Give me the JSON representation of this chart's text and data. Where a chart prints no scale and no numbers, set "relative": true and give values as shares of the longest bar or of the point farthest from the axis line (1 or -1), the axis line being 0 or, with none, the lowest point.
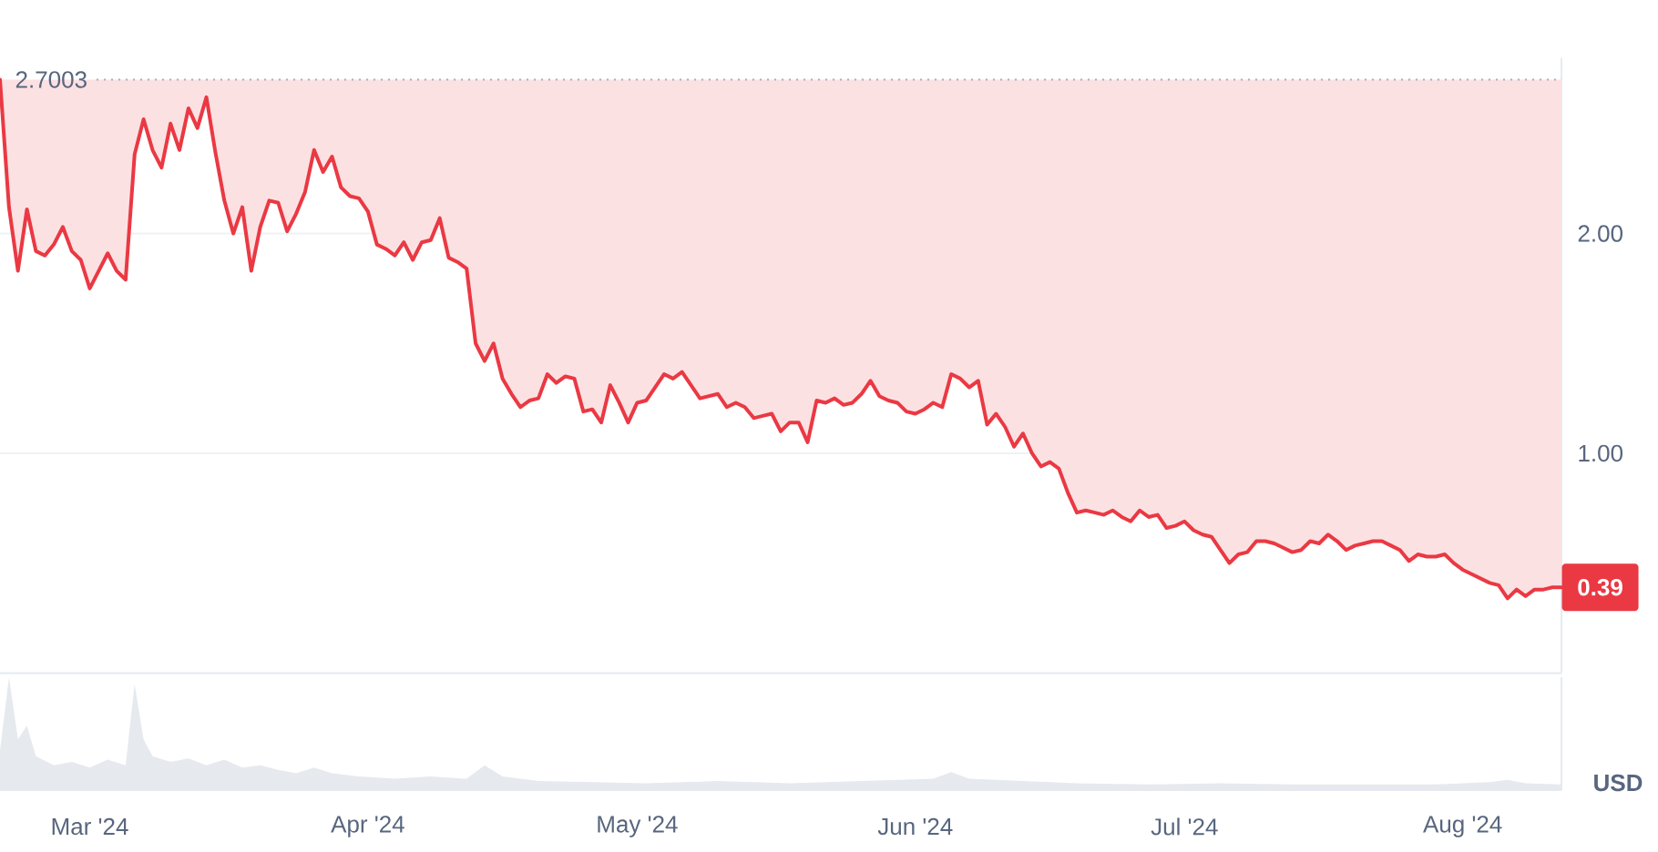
{
  "chart_data": [
    {
      "type": "line",
      "x": [
        "2024-02-20",
        "2024-02-21",
        "2024-02-22",
        "2024-02-23",
        "2024-02-24",
        "2024-02-25",
        "2024-02-26",
        "2024-02-27",
        "2024-02-28",
        "2024-02-29",
        "2024-03-01",
        "2024-03-02",
        "2024-03-03",
        "2024-03-04",
        "2024-03-05",
        "2024-03-06",
        "2024-03-07",
        "2024-03-08",
        "2024-03-09",
        "2024-03-10",
        "2024-03-11",
        "2024-03-12",
        "2024-03-13",
        "2024-03-14",
        "2024-03-15",
        "2024-03-16",
        "2024-03-17",
        "2024-03-18",
        "2024-03-19",
        "2024-03-20",
        "2024-03-21",
        "2024-03-22",
        "2024-03-23",
        "2024-03-24",
        "2024-03-25",
        "2024-03-26",
        "2024-03-27",
        "2024-03-28",
        "2024-03-29",
        "2024-03-30",
        "2024-03-31",
        "2024-04-01",
        "2024-04-02",
        "2024-04-03",
        "2024-04-04",
        "2024-04-05",
        "2024-04-06",
        "2024-04-07",
        "2024-04-08",
        "2024-04-09",
        "2024-04-10",
        "2024-04-11",
        "2024-04-12",
        "2024-04-13",
        "2024-04-14",
        "2024-04-15",
        "2024-04-16",
        "2024-04-17",
        "2024-04-18",
        "2024-04-19",
        "2024-04-20",
        "2024-04-21",
        "2024-04-22",
        "2024-04-23",
        "2024-04-24",
        "2024-04-25",
        "2024-04-26",
        "2024-04-27",
        "2024-04-28",
        "2024-04-29",
        "2024-04-30",
        "2024-05-01",
        "2024-05-02",
        "2024-05-03",
        "2024-05-04",
        "2024-05-05",
        "2024-05-06",
        "2024-05-07",
        "2024-05-08",
        "2024-05-09",
        "2024-05-10",
        "2024-05-11",
        "2024-05-12",
        "2024-05-13",
        "2024-05-14",
        "2024-05-15",
        "2024-05-16",
        "2024-05-17",
        "2024-05-18",
        "2024-05-19",
        "2024-05-20",
        "2024-05-21",
        "2024-05-22",
        "2024-05-23",
        "2024-05-24",
        "2024-05-25",
        "2024-05-26",
        "2024-05-27",
        "2024-05-28",
        "2024-05-29",
        "2024-05-30",
        "2024-05-31",
        "2024-06-01",
        "2024-06-02",
        "2024-06-03",
        "2024-06-04",
        "2024-06-05",
        "2024-06-06",
        "2024-06-07",
        "2024-06-08",
        "2024-06-09",
        "2024-06-10",
        "2024-06-11",
        "2024-06-12",
        "2024-06-13",
        "2024-06-14",
        "2024-06-15",
        "2024-06-16",
        "2024-06-17",
        "2024-06-18",
        "2024-06-19",
        "2024-06-20",
        "2024-06-21",
        "2024-06-22",
        "2024-06-23",
        "2024-06-24",
        "2024-06-25",
        "2024-06-26",
        "2024-06-27",
        "2024-06-28",
        "2024-06-29",
        "2024-06-30",
        "2024-07-01",
        "2024-07-02",
        "2024-07-03",
        "2024-07-04",
        "2024-07-05",
        "2024-07-06",
        "2024-07-07",
        "2024-07-08",
        "2024-07-09",
        "2024-07-10",
        "2024-07-11",
        "2024-07-12",
        "2024-07-13",
        "2024-07-14",
        "2024-07-15",
        "2024-07-16",
        "2024-07-17",
        "2024-07-18",
        "2024-07-19",
        "2024-07-20",
        "2024-07-21",
        "2024-07-22",
        "2024-07-23",
        "2024-07-24",
        "2024-07-25",
        "2024-07-26",
        "2024-07-27",
        "2024-07-28",
        "2024-07-29",
        "2024-07-30",
        "2024-07-31",
        "2024-08-01",
        "2024-08-02",
        "2024-08-03",
        "2024-08-04",
        "2024-08-05",
        "2024-08-06",
        "2024-08-07",
        "2024-08-08",
        "2024-08-09",
        "2024-08-10",
        "2024-08-11",
        "2024-08-12"
      ],
      "series": [
        {
          "color": "#ea3943",
          "values": [
            2.7003,
            2.12,
            1.83,
            2.11,
            1.92,
            1.9,
            1.95,
            2.03,
            1.92,
            1.88,
            1.75,
            1.83,
            1.91,
            1.83,
            1.79,
            2.36,
            2.52,
            2.38,
            2.3,
            2.5,
            2.38,
            2.57,
            2.48,
            2.62,
            2.37,
            2.15,
            2.0,
            2.12,
            1.83,
            2.03,
            2.15,
            2.14,
            2.01,
            2.09,
            2.19,
            2.38,
            2.28,
            2.35,
            2.21,
            2.17,
            2.16,
            2.1,
            1.95,
            1.93,
            1.9,
            1.96,
            1.88,
            1.96,
            1.97,
            2.07,
            1.89,
            1.87,
            1.84,
            1.5,
            1.42,
            1.5,
            1.34,
            1.27,
            1.21,
            1.24,
            1.25,
            1.36,
            1.32,
            1.35,
            1.34,
            1.19,
            1.2,
            1.14,
            1.31,
            1.23,
            1.14,
            1.23,
            1.24,
            1.3,
            1.36,
            1.34,
            1.37,
            1.31,
            1.25,
            1.26,
            1.27,
            1.21,
            1.23,
            1.21,
            1.16,
            1.17,
            1.18,
            1.1,
            1.14,
            1.14,
            1.05,
            1.24,
            1.23,
            1.25,
            1.22,
            1.23,
            1.27,
            1.33,
            1.26,
            1.24,
            1.23,
            1.19,
            1.18,
            1.2,
            1.23,
            1.21,
            1.36,
            1.34,
            1.3,
            1.33,
            1.13,
            1.18,
            1.12,
            1.03,
            1.09,
            1.0,
            0.94,
            0.96,
            0.93,
            0.82,
            0.73,
            0.74,
            0.73,
            0.72,
            0.74,
            0.71,
            0.69,
            0.74,
            0.71,
            0.72,
            0.66,
            0.67,
            0.69,
            0.65,
            0.63,
            0.62,
            0.56,
            0.5,
            0.54,
            0.55,
            0.6,
            0.6,
            0.59,
            0.57,
            0.55,
            0.56,
            0.6,
            0.59,
            0.63,
            0.6,
            0.56,
            0.58,
            0.59,
            0.6,
            0.6,
            0.58,
            0.56,
            0.51,
            0.54,
            0.53,
            0.53,
            0.54,
            0.5,
            0.47,
            0.45,
            0.43,
            0.41,
            0.4,
            0.34,
            0.38,
            0.35,
            0.38,
            0.38,
            0.39,
            0.39
          ],
          "lower": [
            2.7003,
            2.12,
            1.83,
            2.11,
            1.92,
            1.9,
            1.95,
            2.03,
            1.92,
            1.88,
            1.75,
            1.83,
            1.91,
            1.83,
            1.79,
            2.36,
            2.52,
            2.38,
            2.3,
            2.5,
            2.38,
            2.57,
            2.48,
            2.62,
            2.37,
            2.15,
            2.0,
            2.12,
            1.83,
            2.03,
            2.15,
            2.14,
            2.01,
            2.09,
            2.19,
            2.38,
            2.28,
            2.35,
            2.21,
            2.17,
            2.16,
            2.1,
            1.95,
            1.93,
            1.9,
            1.96,
            1.88,
            1.96,
            1.97,
            2.07,
            1.89,
            1.87,
            1.84,
            1.5,
            1.42,
            1.5,
            1.34,
            1.27,
            1.21,
            1.24,
            1.25,
            1.36,
            1.32,
            1.35,
            1.34,
            1.19,
            1.2,
            1.14,
            1.31,
            1.23,
            1.14,
            1.23,
            1.24,
            1.3,
            1.36,
            1.34,
            1.37,
            1.31,
            1.25,
            1.26,
            1.27,
            1.21,
            1.23,
            1.21,
            1.16,
            1.17,
            1.18,
            1.1,
            1.14,
            1.14,
            1.05,
            1.24,
            1.23,
            1.25,
            1.22,
            1.23,
            1.27,
            1.33,
            1.26,
            1.24,
            1.23,
            1.19,
            1.18,
            1.2,
            1.23,
            1.21,
            1.36,
            1.34,
            1.3,
            1.33,
            1.13,
            1.18,
            1.12,
            1.03,
            1.09,
            1.0,
            0.94,
            0.96,
            0.93,
            0.82,
            0.73,
            0.74,
            0.73,
            0.72,
            0.74,
            0.71,
            0.69,
            0.74,
            0.71,
            0.72,
            0.66,
            0.67,
            0.69,
            0.65,
            0.63,
            0.62,
            0.56,
            0.5,
            0.54,
            0.55,
            0.6,
            0.6,
            0.59,
            0.57,
            0.55,
            0.56,
            0.6,
            0.59,
            0.63,
            0.6,
            0.56,
            0.58,
            0.59,
            0.6,
            0.6,
            0.58,
            0.56,
            0.51,
            0.54,
            0.53,
            0.53,
            0.54,
            0.5,
            0.47,
            0.45,
            0.43,
            0.41,
            0.4,
            0.34,
            0.38,
            0.35,
            0.38,
            0.38,
            0.39,
            0.39
          ],
          "upper": [
            2.7003,
            2.7003,
            2.7003,
            2.7003,
            2.7003,
            2.7003,
            2.7003,
            2.7003,
            2.7003,
            2.7003,
            2.7003,
            2.7003,
            2.7003,
            2.7003,
            2.7003,
            2.7003,
            2.7003,
            2.7003,
            2.7003,
            2.7003,
            2.7003,
            2.7003,
            2.7003,
            2.7003,
            2.7003,
            2.7003,
            2.7003,
            2.7003,
            2.7003,
            2.7003,
            2.7003,
            2.7003,
            2.7003,
            2.7003,
            2.7003,
            2.7003,
            2.7003,
            2.7003,
            2.7003,
            2.7003,
            2.7003,
            2.7003,
            2.7003,
            2.7003,
            2.7003,
            2.7003,
            2.7003,
            2.7003,
            2.7003,
            2.7003,
            2.7003,
            2.7003,
            2.7003,
            2.7003,
            2.7003,
            2.7003,
            2.7003,
            2.7003,
            2.7003,
            2.7003,
            2.7003,
            2.7003,
            2.7003,
            2.7003,
            2.7003,
            2.7003,
            2.7003,
            2.7003,
            2.7003,
            2.7003,
            2.7003,
            2.7003,
            2.7003,
            2.7003,
            2.7003,
            2.7003,
            2.7003,
            2.7003,
            2.7003,
            2.7003,
            2.7003,
            2.7003,
            2.7003,
            2.7003,
            2.7003,
            2.7003,
            2.7003,
            2.7003,
            2.7003,
            2.7003,
            2.7003,
            2.7003,
            2.7003,
            2.7003,
            2.7003,
            2.7003,
            2.7003,
            2.7003,
            2.7003,
            2.7003,
            2.7003,
            2.7003,
            2.7003,
            2.7003,
            2.7003,
            2.7003,
            2.7003,
            2.7003,
            2.7003,
            2.7003,
            2.7003,
            2.7003,
            2.7003,
            2.7003,
            2.7003,
            2.7003,
            2.7003,
            2.7003,
            2.7003,
            2.7003,
            2.7003,
            2.7003,
            2.7003,
            2.7003,
            2.7003,
            2.7003,
            2.7003,
            2.7003,
            2.7003,
            2.7003,
            2.7003,
            2.7003,
            2.7003,
            2.7003,
            2.7003,
            2.7003,
            2.7003,
            2.7003,
            2.7003,
            2.7003,
            2.7003,
            2.7003,
            2.7003,
            2.7003,
            2.7003,
            2.7003,
            2.7003,
            2.7003,
            2.7003,
            2.7003,
            2.7003,
            2.7003,
            2.7003,
            2.7003,
            2.7003,
            2.7003,
            2.7003,
            2.7003,
            2.7003,
            2.7003,
            2.7003,
            2.7003,
            2.7003,
            2.7003,
            2.7003,
            2.7003,
            2.7003,
            2.7003,
            2.7003,
            2.7003,
            2.7003,
            2.7003,
            2.7003,
            2.7003,
            2.7003
          ]
        }
      ],
      "xlim": [
        "2024-02-20",
        "2024-08-12"
      ],
      "ylim": [
        0,
        2.8
      ],
      "yticks": [
        {
          "value": 1,
          "label": "1.00"
        },
        {
          "value": 2,
          "label": "2.00"
        }
      ],
      "ylabel": "USD",
      "grid": "y",
      "tick_labels": "y",
      "ref_lines": [
        {
          "axis": "y",
          "value": 2.7003,
          "label": "2.7003",
          "line_style": "dotted",
          "color": "#a6b0c3"
        }
      ],
      "annotations": [
        {
          "text": "0.39",
          "x": "2024-08-12",
          "y": 0.39
        }
      ]
    },
    {
      "type": "area",
      "relative": true,
      "x": [
        "2024-02-20",
        "2024-02-21",
        "2024-02-22",
        "2024-02-23",
        "2024-02-24",
        "2024-02-26",
        "2024-02-28",
        "2024-03-01",
        "2024-03-03",
        "2024-03-05",
        "2024-03-06",
        "2024-03-07",
        "2024-03-08",
        "2024-03-10",
        "2024-03-12",
        "2024-03-14",
        "2024-03-16",
        "2024-03-18",
        "2024-03-20",
        "2024-03-22",
        "2024-03-24",
        "2024-03-26",
        "2024-03-28",
        "2024-03-31",
        "2024-04-04",
        "2024-04-08",
        "2024-04-12",
        "2024-04-14",
        "2024-04-16",
        "2024-04-20",
        "2024-04-26",
        "2024-05-02",
        "2024-05-10",
        "2024-05-18",
        "2024-05-26",
        "2024-06-03",
        "2024-06-05",
        "2024-06-07",
        "2024-06-13",
        "2024-06-19",
        "2024-06-27",
        "2024-07-05",
        "2024-07-13",
        "2024-07-21",
        "2024-07-29",
        "2024-08-04",
        "2024-08-06",
        "2024-08-08",
        "2024-08-12"
      ],
      "values": [
        0.35,
        1,
        0.45,
        0.57,
        0.3,
        0.22,
        0.25,
        0.2,
        0.27,
        0.22,
        0.94,
        0.45,
        0.3,
        0.25,
        0.28,
        0.22,
        0.27,
        0.2,
        0.22,
        0.18,
        0.15,
        0.2,
        0.15,
        0.12,
        0.1,
        0.12,
        0.1,
        0.22,
        0.12,
        0.08,
        0.07,
        0.06,
        0.08,
        0.06,
        0.08,
        0.1,
        0.16,
        0.1,
        0.08,
        0.06,
        0.05,
        0.06,
        0.05,
        0.05,
        0.05,
        0.07,
        0.09,
        0.06,
        0.05
      ],
      "color": "#e6e9ee",
      "xlim": [
        "2024-02-20",
        "2024-08-12"
      ],
      "xticks": [
        {
          "value": "2024-03-01",
          "label": "Mar '24"
        },
        {
          "value": "2024-04-01",
          "label": "Apr '24"
        },
        {
          "value": "2024-05-01",
          "label": "May '24"
        },
        {
          "value": "2024-06-01",
          "label": "Jun '24"
        },
        {
          "value": "2024-07-01",
          "label": "Jul '24"
        },
        {
          "value": "2024-08-01",
          "label": "Aug '24"
        }
      ],
      "tick_labels": "x"
    }
  ]
}
